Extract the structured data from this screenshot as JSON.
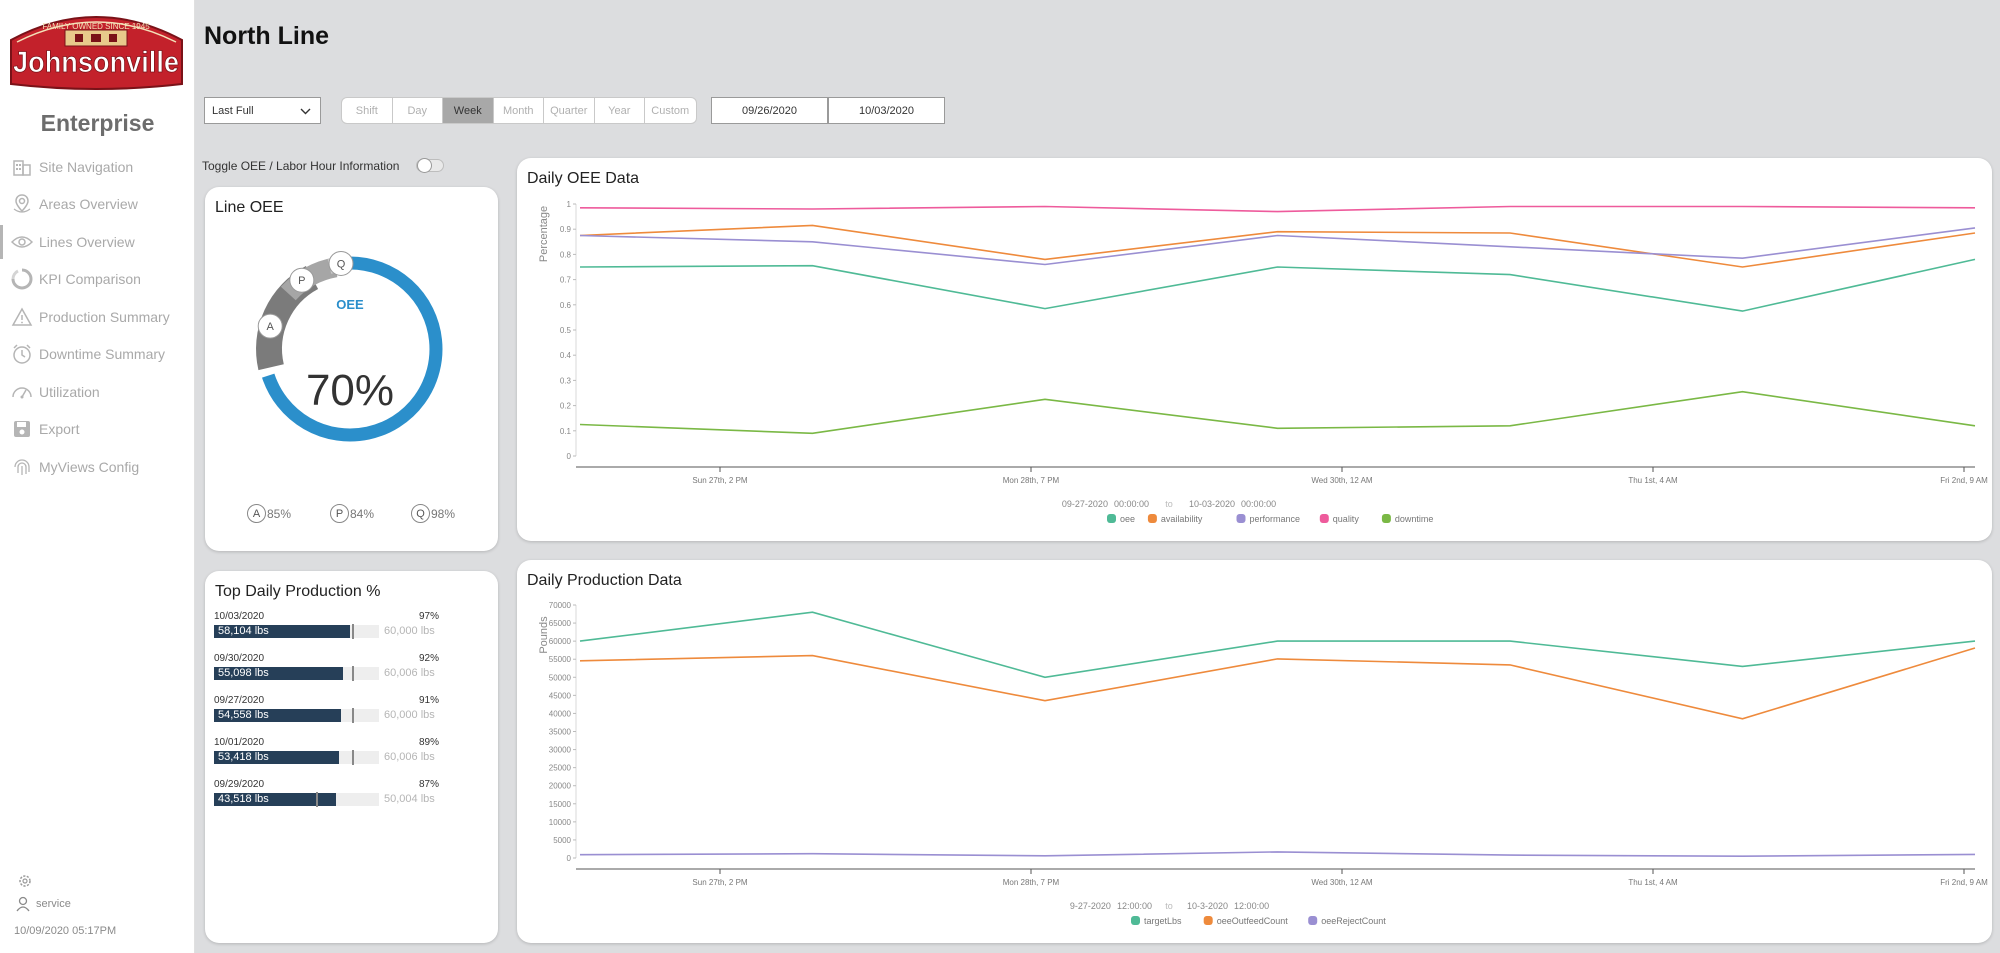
{
  "sidebar": {
    "logo_text": "Johnsonville",
    "logo_tagline": "FAMILY OWNED SINCE 1945",
    "enterprise_label": "Enterprise",
    "items": [
      {
        "label": "Site Navigation",
        "icon": "building-icon"
      },
      {
        "label": "Areas Overview",
        "icon": "map-pin-icon"
      },
      {
        "label": "Lines Overview",
        "icon": "eye-icon"
      },
      {
        "label": "KPI Comparison",
        "icon": "refresh-circle-icon"
      },
      {
        "label": "Production Summary",
        "icon": "warning-icon"
      },
      {
        "label": "Downtime Summary",
        "icon": "alarm-clock-icon"
      },
      {
        "label": "Utilization",
        "icon": "gauge-icon"
      },
      {
        "label": "Export",
        "icon": "save-icon"
      },
      {
        "label": "MyViews Config",
        "icon": "fingerprint-icon"
      }
    ],
    "user": "service",
    "timestamp": "10/09/2020 05:17PM"
  },
  "header": {
    "title": "North Line",
    "range_select": "Last Full",
    "periods": [
      "Shift",
      "Day",
      "Week",
      "Month",
      "Quarter",
      "Year",
      "Custom"
    ],
    "selected_period": "Week",
    "date_start": "09/26/2020",
    "date_end": "10/03/2020",
    "toggle_label": "Toggle OEE / Labor Hour Information"
  },
  "line_oee": {
    "title": "Line OEE",
    "center_label": "OEE",
    "oee_value": "70%",
    "oee": 0.7,
    "stats": [
      {
        "letter": "A",
        "value": "85%"
      },
      {
        "letter": "P",
        "value": "84%"
      },
      {
        "letter": "Q",
        "value": "98%"
      }
    ]
  },
  "top_production": {
    "title": "Top Daily Production %",
    "rows": [
      {
        "date": "10/03/2020",
        "pct": "97%",
        "lbs": "58,104 lbs",
        "target": "60,000 lbs",
        "fraction": 0.968
      },
      {
        "date": "09/30/2020",
        "pct": "92%",
        "lbs": "55,098 lbs",
        "target": "60,006 lbs",
        "fraction": 0.918
      },
      {
        "date": "09/27/2020",
        "pct": "91%",
        "lbs": "54,558 lbs",
        "target": "60,000 lbs",
        "fraction": 0.909
      },
      {
        "date": "10/01/2020",
        "pct": "89%",
        "lbs": "53,418 lbs",
        "target": "60,006 lbs",
        "fraction": 0.89
      },
      {
        "date": "09/29/2020",
        "pct": "87%",
        "lbs": "43,518 lbs",
        "target": "50,004 lbs",
        "fraction": 0.87
      }
    ]
  },
  "oee_chart": {
    "title": "Daily OEE Data",
    "range_text": {
      "from": "09-27-2020",
      "from_time": "00:00:00",
      "to": "to",
      "to_date": "10-03-2020",
      "to_time": "00:00:00"
    }
  },
  "prod_chart": {
    "title": "Daily Production Data",
    "range_text": {
      "from": "9-27-2020",
      "from_time": "12:00:00",
      "to": "to",
      "to_date": "10-3-2020",
      "to_time": "12:00:00"
    }
  },
  "chart_data": [
    {
      "type": "line",
      "title": "Daily OEE Data",
      "xlabel": "",
      "ylabel": "Percentage",
      "ylim": [
        0,
        1
      ],
      "yticks": [
        "0",
        "0.1",
        "0.2",
        "0.3",
        "0.4",
        "0.5",
        "0.6",
        "0.7",
        "0.8",
        "0.9",
        "1"
      ],
      "xticks": [
        "Sun 27th, 2 PM",
        "Mon 28th, 7 PM",
        "Wed 30th, 12 AM",
        "Thu 1st, 4 AM",
        "Fri 2nd, 9 AM"
      ],
      "x": [
        "09-27 00:00",
        "09-28 00:00",
        "09-29 00:00",
        "09-30 00:00",
        "10-01 00:00",
        "10-02 00:00",
        "10-03 00:00"
      ],
      "series": [
        {
          "name": "oee",
          "color": "#4fba96",
          "values": [
            0.75,
            0.755,
            0.585,
            0.75,
            0.72,
            0.575,
            0.78
          ]
        },
        {
          "name": "availability",
          "color": "#ee8a3c",
          "values": [
            0.875,
            0.915,
            0.78,
            0.89,
            0.885,
            0.75,
            0.885
          ]
        },
        {
          "name": "performance",
          "color": "#9a8fd2",
          "values": [
            0.875,
            0.85,
            0.76,
            0.875,
            0.83,
            0.785,
            0.905
          ]
        },
        {
          "name": "quality",
          "color": "#ee5b9c",
          "values": [
            0.985,
            0.98,
            0.99,
            0.97,
            0.99,
            0.99,
            0.985
          ]
        },
        {
          "name": "downtime",
          "color": "#7ab845",
          "values": [
            0.125,
            0.09,
            0.225,
            0.11,
            0.12,
            0.255,
            0.12
          ]
        }
      ],
      "legend": "bottom"
    },
    {
      "type": "line",
      "title": "Daily Production Data",
      "xlabel": "",
      "ylabel": "Pounds",
      "ylim": [
        0,
        70000
      ],
      "yticks": [
        "0",
        "5000",
        "10000",
        "15000",
        "20000",
        "25000",
        "30000",
        "35000",
        "40000",
        "45000",
        "50000",
        "55000",
        "60000",
        "65000",
        "70000"
      ],
      "xticks": [
        "Sun 27th, 2 PM",
        "Mon 28th, 7 PM",
        "Wed 30th, 12 AM",
        "Thu 1st, 4 AM",
        "Fri 2nd, 9 AM"
      ],
      "x": [
        "09-27 12:00",
        "09-28 12:00",
        "09-29 12:00",
        "09-30 12:00",
        "10-01 12:00",
        "10-02 12:00",
        "10-03 12:00"
      ],
      "series": [
        {
          "name": "targetLbs",
          "color": "#4fba96",
          "values": [
            60000,
            68000,
            50000,
            60006,
            60006,
            53000,
            60000
          ]
        },
        {
          "name": "oeeOutfeedCount",
          "color": "#ee8a3c",
          "values": [
            54558,
            56000,
            43518,
            55098,
            53418,
            38500,
            58104
          ]
        },
        {
          "name": "oeeRejectCount",
          "color": "#9a8fd2",
          "values": [
            900,
            1200,
            600,
            1700,
            800,
            500,
            1000
          ]
        }
      ],
      "legend": "bottom"
    }
  ]
}
